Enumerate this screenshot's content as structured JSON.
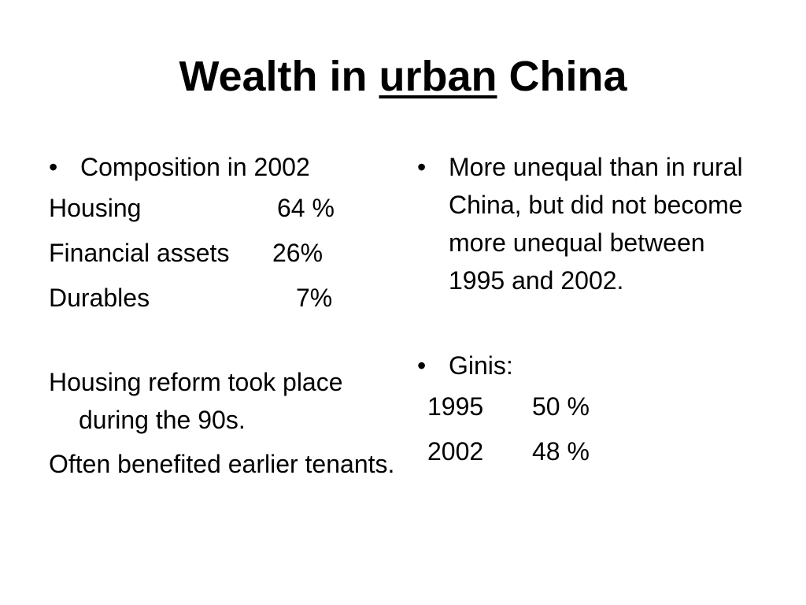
{
  "title": {
    "before": "Wealth in ",
    "underlined": "urban",
    "after": " China"
  },
  "left": {
    "bullet_char": "•",
    "heading": "Composition in 2002",
    "composition": [
      {
        "label": "Housing",
        "value": "64 %"
      },
      {
        "label": "Financial assets",
        "value": "26%"
      },
      {
        "label": "Durables",
        "value": "7%"
      }
    ],
    "para1": "Housing reform took place during the 90s.",
    "para2": "Often benefited earlier tenants."
  },
  "right": {
    "bullet_char": "•",
    "bullet1": "More unequal than in rural China, but did not become more unequal between 1995 and 2002.",
    "bullet2": "Ginis:",
    "ginis": [
      {
        "year": "1995",
        "value": "50 %"
      },
      {
        "year": "2002",
        "value": "48 %"
      }
    ]
  }
}
